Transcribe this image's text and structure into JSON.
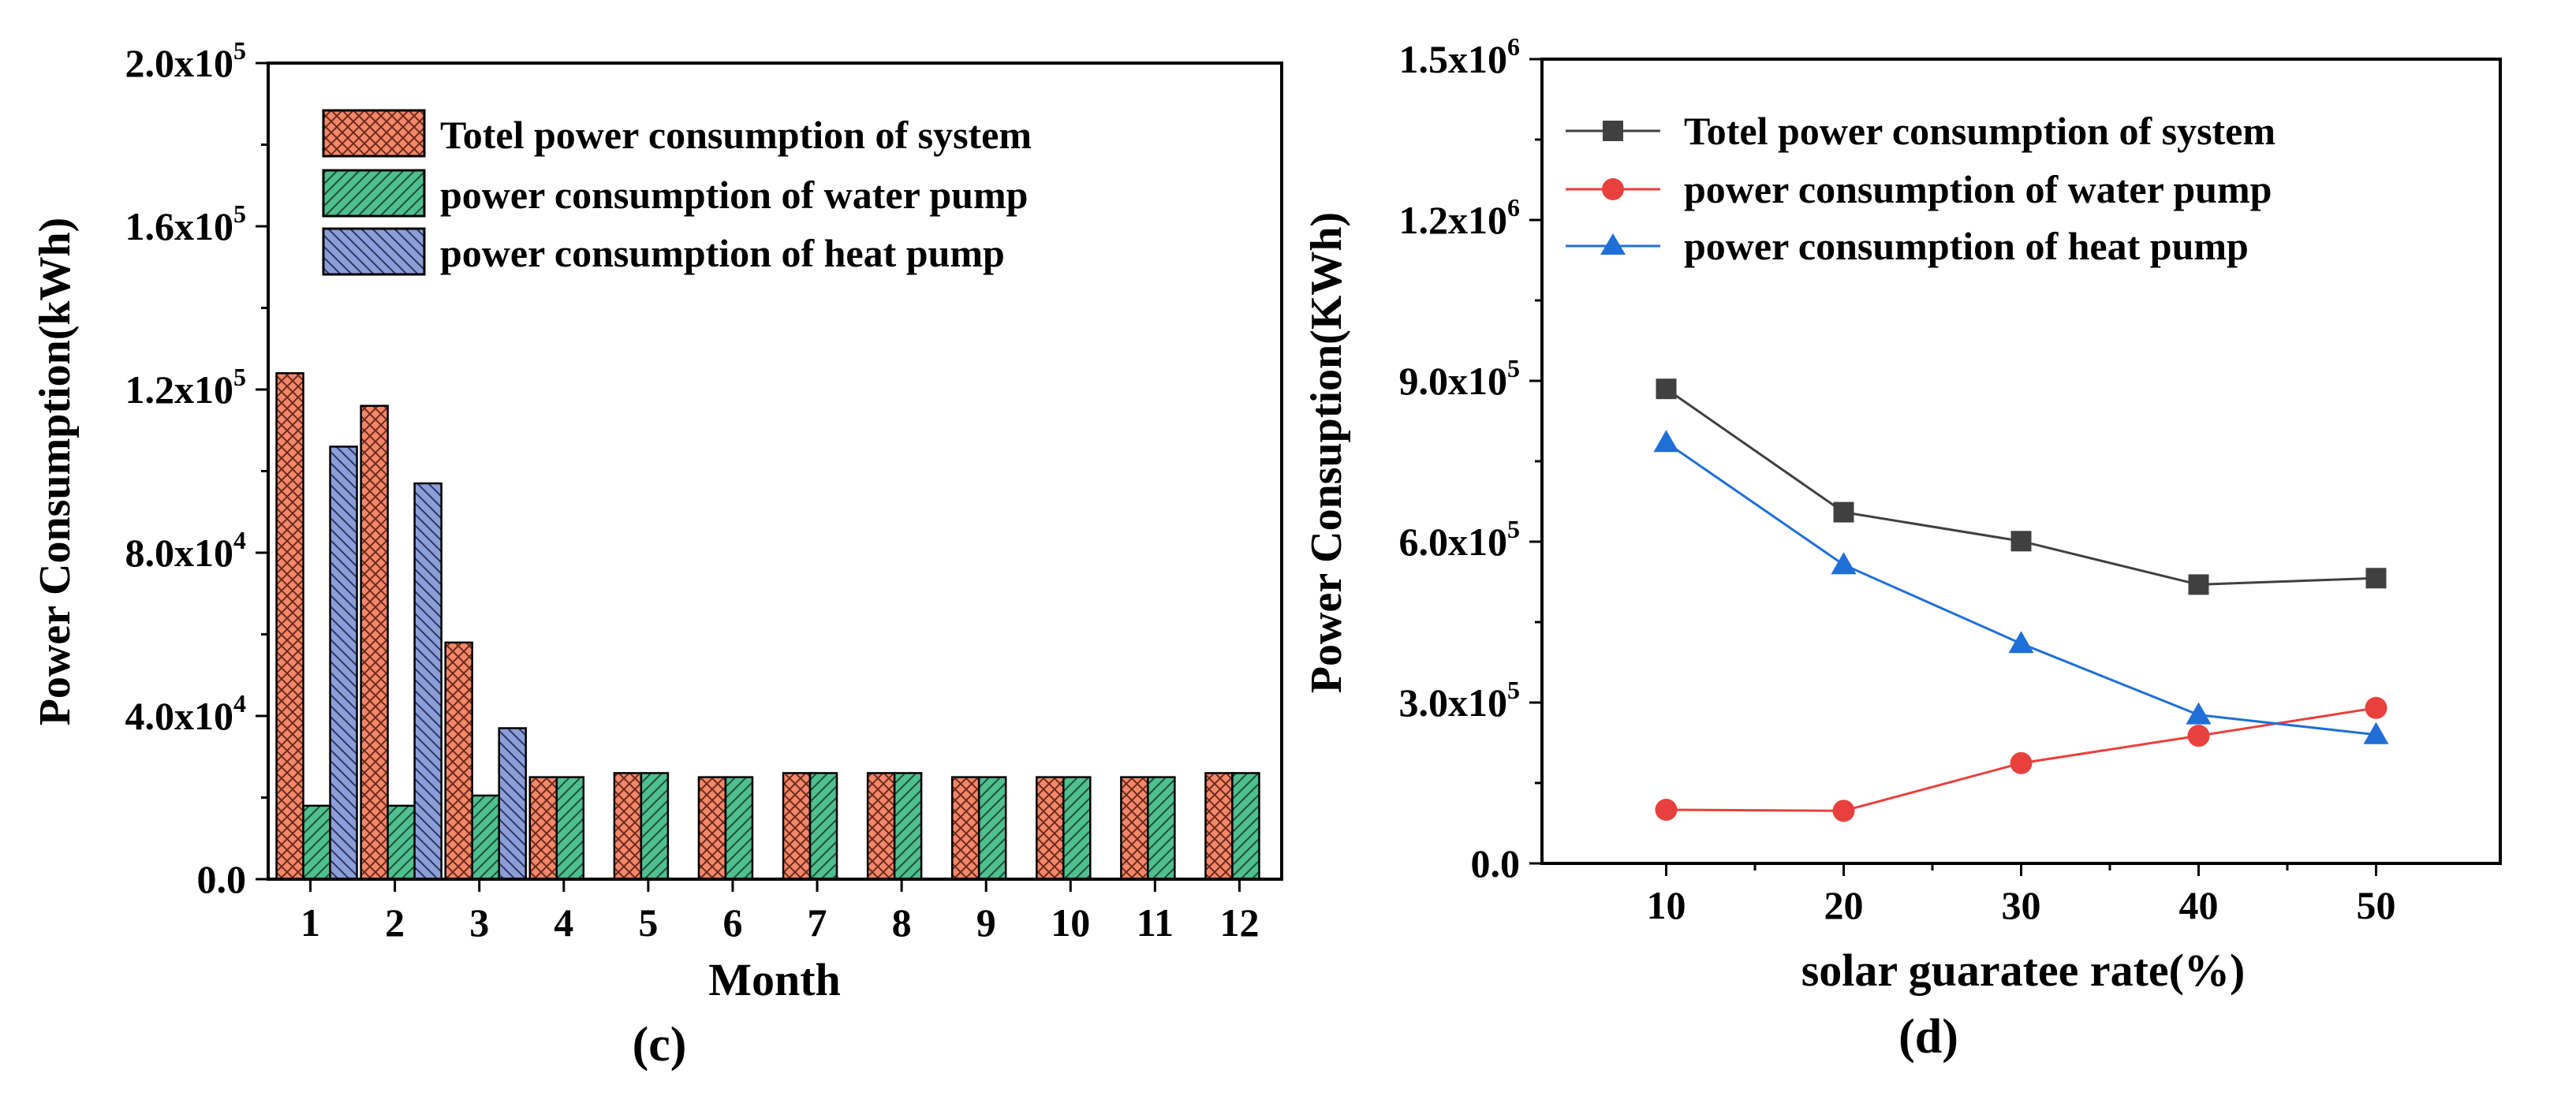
{
  "chart_data": [
    {
      "type": "bar",
      "panel_label": "(c)",
      "xlabel": "Month",
      "ylabel": "Power Consumption(kWh)",
      "categories": [
        "1",
        "2",
        "3",
        "4",
        "5",
        "6",
        "7",
        "8",
        "9",
        "10",
        "11",
        "12"
      ],
      "ylim": [
        0,
        200000
      ],
      "yticks": [
        {
          "value": 0,
          "mant": "0.0",
          "exp": ""
        },
        {
          "value": 40000,
          "mant": "4.0x10",
          "exp": "4"
        },
        {
          "value": 80000,
          "mant": "8.0x10",
          "exp": "4"
        },
        {
          "value": 120000,
          "mant": "1.2x10",
          "exp": "5"
        },
        {
          "value": 160000,
          "mant": "1.6x10",
          "exp": "5"
        },
        {
          "value": 200000,
          "mant": "2.0x10",
          "exp": "5"
        }
      ],
      "legend_position": "top-left",
      "series": [
        {
          "name": "Totel power consumption of system",
          "color": "#f4876a",
          "pattern": "crosshatch",
          "values": [
            124000,
            116000,
            58000,
            25000,
            26000,
            25000,
            26000,
            26000,
            25000,
            25000,
            25000,
            26000
          ]
        },
        {
          "name": "power consumption of water pump",
          "color": "#4fbf8f",
          "pattern": "diag-up",
          "values": [
            18000,
            18000,
            20500,
            25000,
            26000,
            25000,
            26000,
            26000,
            25000,
            25000,
            25000,
            26000
          ]
        },
        {
          "name": "power consumption of heat pump",
          "color": "#8c9ed8",
          "pattern": "diag-down",
          "values": [
            106000,
            97000,
            37000,
            0,
            0,
            0,
            0,
            0,
            0,
            0,
            0,
            0
          ]
        }
      ]
    },
    {
      "type": "line",
      "panel_label": "(d)",
      "xlabel": "solar guaratee rate(%)",
      "ylabel": "Power Consuption(KWh)",
      "x": [
        10,
        20,
        30,
        40,
        50
      ],
      "xticks": [
        "10",
        "20",
        "30",
        "40",
        "50"
      ],
      "xlim": [
        3,
        57
      ],
      "ylim": [
        0,
        1500000
      ],
      "yticks": [
        {
          "value": 0,
          "mant": "0.0",
          "exp": ""
        },
        {
          "value": 300000,
          "mant": "3.0x10",
          "exp": "5"
        },
        {
          "value": 600000,
          "mant": "6.0x10",
          "exp": "5"
        },
        {
          "value": 900000,
          "mant": "9.0x10",
          "exp": "5"
        },
        {
          "value": 1200000,
          "mant": "1.2x10",
          "exp": "6"
        },
        {
          "value": 1500000,
          "mant": "1.5x10",
          "exp": "6"
        }
      ],
      "legend_position": "top-left",
      "series": [
        {
          "name": "Totel power consumption of system",
          "color": "#404040",
          "marker": "square",
          "values": [
            885000,
            655000,
            601000,
            520000,
            532000
          ]
        },
        {
          "name": "power consumption of water pump",
          "color": "#e8413d",
          "marker": "circle",
          "values": [
            100000,
            98000,
            187000,
            238000,
            290000
          ]
        },
        {
          "name": "power consumption of heat pump",
          "color": "#1f6fd6",
          "marker": "triangle",
          "values": [
            785000,
            557000,
            410000,
            277000,
            240000
          ]
        }
      ]
    }
  ]
}
